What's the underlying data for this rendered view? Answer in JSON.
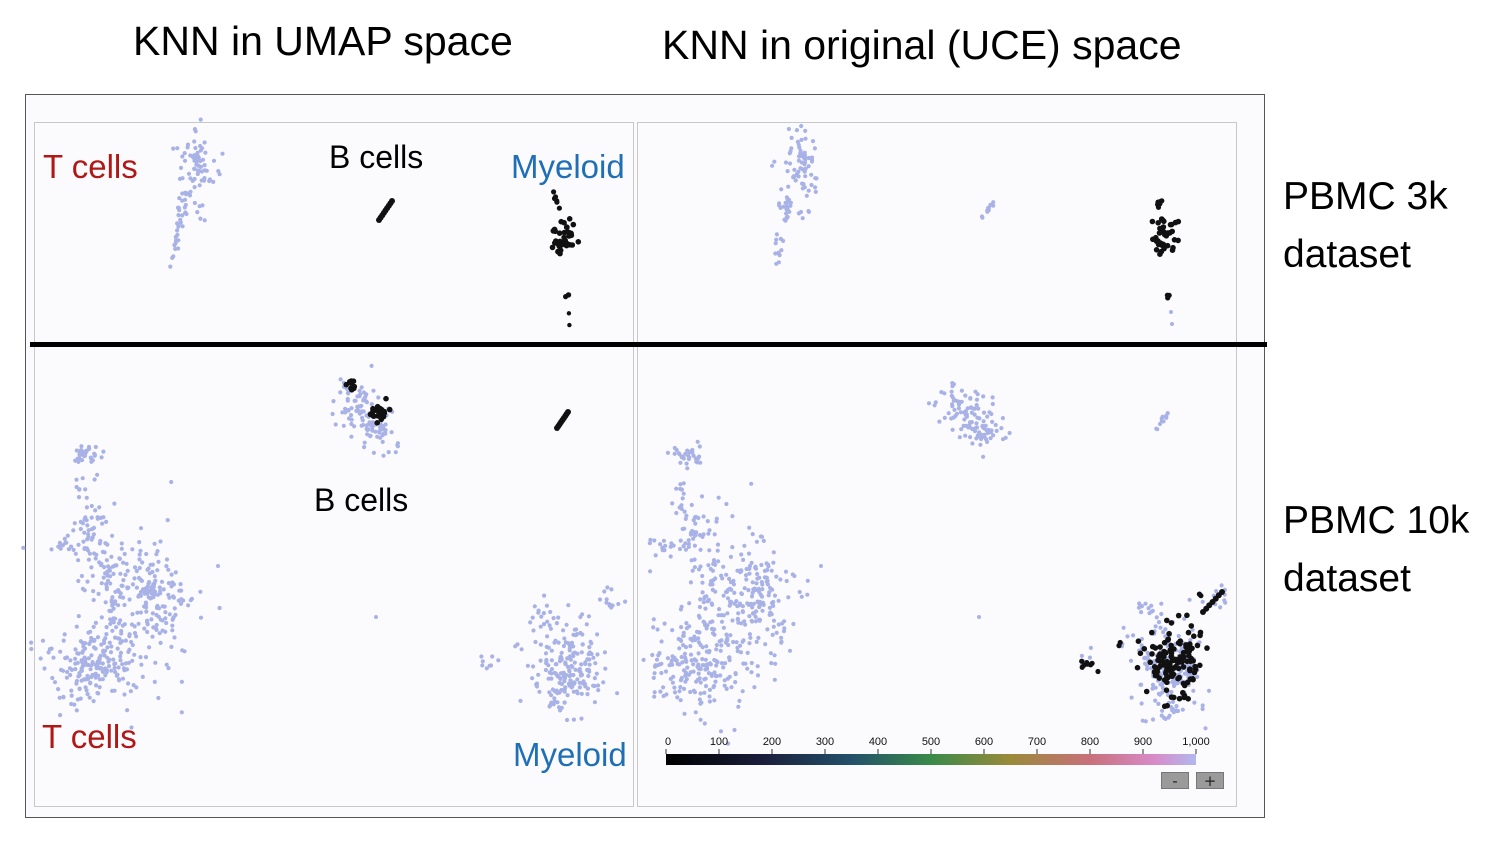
{
  "titles": {
    "left": "KNN in UMAP space",
    "right": "KNN in original (UCE) space"
  },
  "rows": [
    {
      "line1": "PBMC 3k",
      "line2": "dataset"
    },
    {
      "line1": "PBMC 10k",
      "line2": "dataset"
    }
  ],
  "annotations": {
    "top_left": {
      "t_cells": "T cells",
      "b_cells": "B cells",
      "myeloid": "Myeloid"
    },
    "bottom_left": {
      "t_cells": "T cells",
      "b_cells": "B cells",
      "myeloid": "Myeloid"
    }
  },
  "colorbar": {
    "ticks": [
      "0",
      "100",
      "200",
      "300",
      "400",
      "500",
      "600",
      "700",
      "800",
      "900",
      "1,000"
    ],
    "zoom_out": "-",
    "zoom_in": "+"
  },
  "colors": {
    "cell": "#a9b2e6",
    "neighbor": "#111111",
    "divider": "#000000"
  },
  "chart_data": {
    "type": "scatter",
    "panels": [
      {
        "row": "PBMC 3k",
        "column": "KNN in UMAP space",
        "highlighted_neighbors": "Myeloid and B cell clusters"
      },
      {
        "row": "PBMC 3k",
        "column": "KNN in original (UCE) space",
        "highlighted_neighbors": "Myeloid cluster"
      },
      {
        "row": "PBMC 10k",
        "column": "KNN in UMAP space",
        "highlighted_neighbors": "B cell cluster"
      },
      {
        "row": "PBMC 10k",
        "column": "KNN in original (UCE) space",
        "highlighted_neighbors": "Myeloid cluster"
      }
    ],
    "colorscale_range": [
      0,
      1000
    ]
  }
}
